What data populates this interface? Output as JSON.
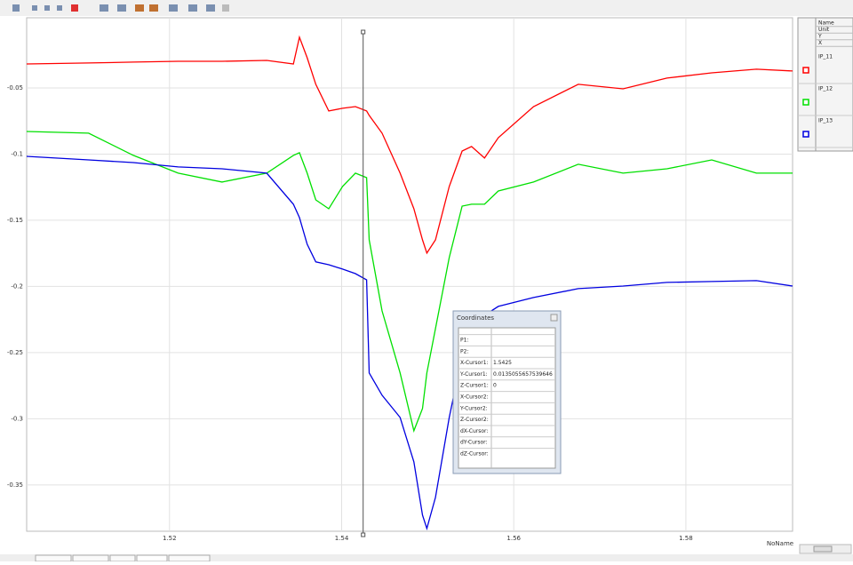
{
  "chart_data": {
    "type": "line",
    "x_label": "NoName",
    "x": [
      1.5034,
      1.5106,
      1.5158,
      1.521,
      1.5261,
      1.5313,
      1.5344,
      1.5351,
      1.536,
      1.537,
      1.5385,
      1.5401,
      1.5416,
      1.5429,
      1.5432,
      1.5447,
      1.5468,
      1.5484,
      1.5494,
      1.5499,
      1.5509,
      1.5525,
      1.554,
      1.5551,
      1.5566,
      1.5582,
      1.5623,
      1.5675,
      1.5727,
      1.5778,
      1.583,
      1.5882,
      1.5924
    ],
    "series": [
      {
        "name": "IP_11",
        "color": "#ff0000",
        "values": [
          -0.0319,
          -0.0312,
          -0.0305,
          -0.0299,
          -0.0299,
          -0.0292,
          -0.0319,
          -0.0117,
          -0.0272,
          -0.0473,
          -0.0674,
          -0.0654,
          -0.0641,
          -0.0674,
          -0.0708,
          -0.0842,
          -0.1144,
          -0.1413,
          -0.1648,
          -0.1748,
          -0.1648,
          -0.1245,
          -0.0977,
          -0.0943,
          -0.103,
          -0.0876,
          -0.0641,
          -0.0473,
          -0.0507,
          -0.0426,
          -0.0386,
          -0.0359,
          -0.0372
        ]
      },
      {
        "name": "IP_12",
        "color": "#00e000",
        "values": [
          -0.0829,
          -0.0842,
          -0.101,
          -0.1144,
          -0.1211,
          -0.1144,
          -0.101,
          -0.099,
          -0.1144,
          -0.1346,
          -0.1413,
          -0.1245,
          -0.1144,
          -0.1178,
          -0.1648,
          -0.2185,
          -0.2654,
          -0.3091,
          -0.2923,
          -0.2654,
          -0.2319,
          -0.1782,
          -0.1393,
          -0.1379,
          -0.1379,
          -0.1279,
          -0.1211,
          -0.1077,
          -0.1144,
          -0.1111,
          -0.1044,
          -0.1144,
          -0.1144
        ]
      },
      {
        "name": "IP_13",
        "color": "#0000e0",
        "values": [
          -0.1017,
          -0.1044,
          -0.1064,
          -0.1097,
          -0.1111,
          -0.1144,
          -0.1379,
          -0.148,
          -0.1681,
          -0.1815,
          -0.1836,
          -0.1869,
          -0.1903,
          -0.195,
          -0.2654,
          -0.2822,
          -0.299,
          -0.3326,
          -0.3728,
          -0.3829,
          -0.3594,
          -0.299,
          -0.252,
          -0.2319,
          -0.2218,
          -0.2151,
          -0.2084,
          -0.2017,
          -0.1997,
          -0.197,
          -0.1963,
          -0.1956,
          -0.1997
        ]
      }
    ],
    "xlim": [
      1.5034,
      1.5924
    ],
    "xticks": [
      1.52,
      1.54,
      1.56,
      1.58
    ],
    "ylim": [
      -0.385,
      0.003
    ],
    "yticks": [
      -0.05,
      -0.1,
      -0.15,
      -0.2,
      -0.25,
      -0.3,
      -0.35
    ],
    "grid": true,
    "cursor_x": 1.5425
  },
  "legend_panel": {
    "headers": [
      "Name",
      "Unit",
      "Y",
      "X"
    ]
  },
  "coordinates_dialog": {
    "title": "Coordinates",
    "rows": [
      {
        "label": "P1:"
      },
      {
        "label": "P2:"
      },
      {
        "label": "X-Cursor1:"
      },
      {
        "label": "Y-Cursor1:",
        "value": "0.0135055657539646"
      },
      {
        "label": "Z-Cursor1:",
        "value": "0"
      },
      {
        "label": "X-Cursor2:"
      },
      {
        "label": "Y-Cursor2:"
      },
      {
        "label": "Z-Cursor2:"
      },
      {
        "label": "dX-Cursor:"
      },
      {
        "label": "dY-Cursor:"
      },
      {
        "label": "dZ-Cursor:"
      }
    ]
  }
}
